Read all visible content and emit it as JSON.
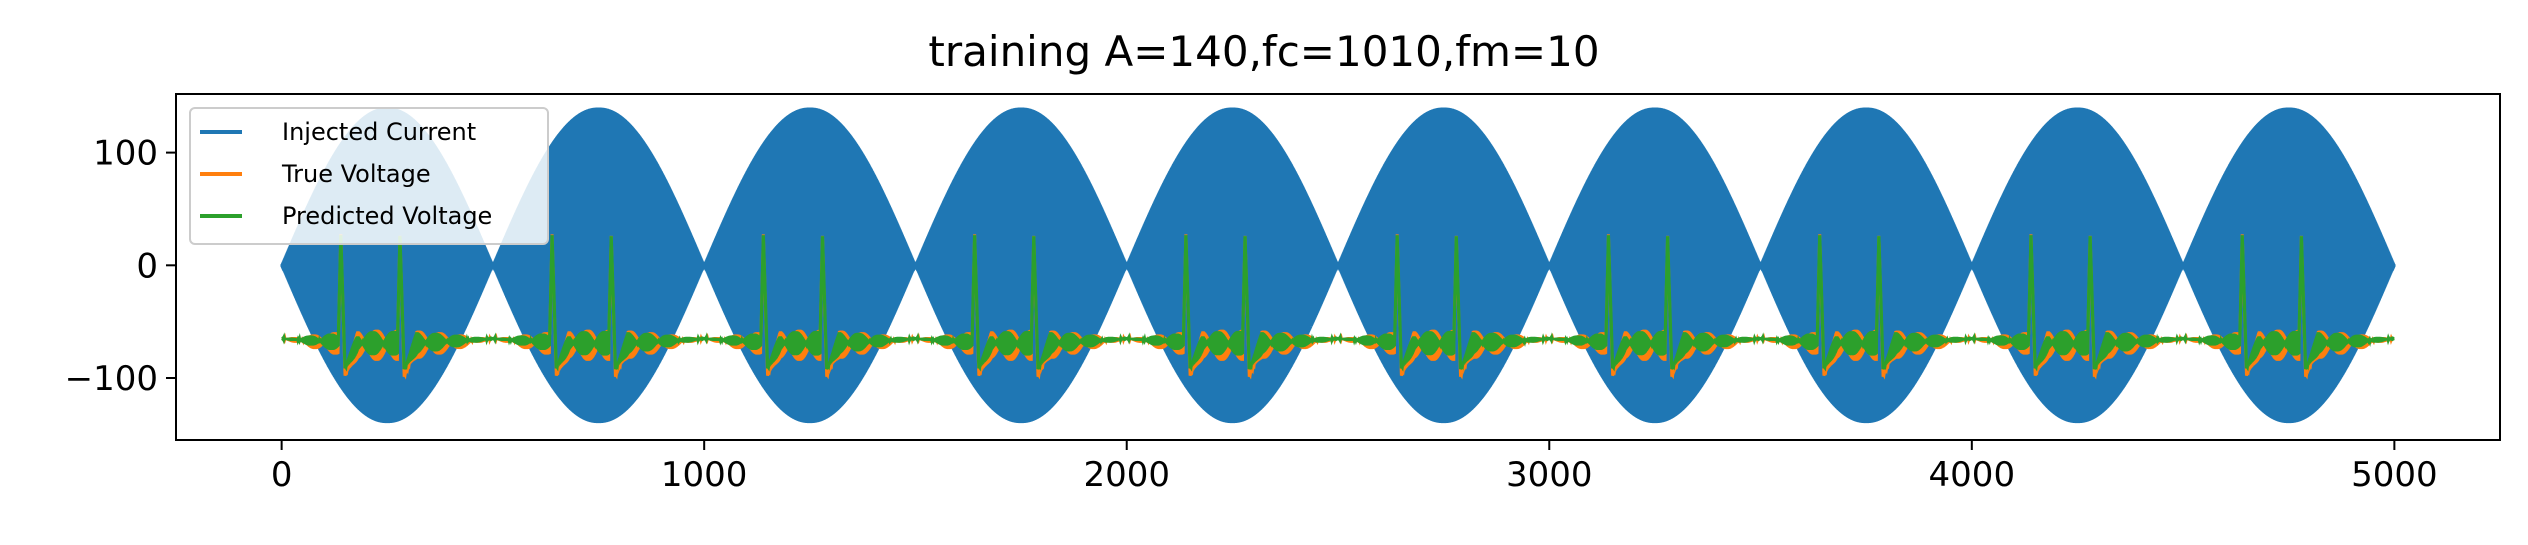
{
  "chart_data": {
    "type": "line",
    "title": "training A=140,fc=1010,fm=10",
    "xlabel": "",
    "ylabel": "",
    "xlim": [
      -250,
      5250
    ],
    "ylim": [
      -155,
      152
    ],
    "xticks": [
      0,
      1000,
      2000,
      3000,
      4000,
      5000
    ],
    "xtick_labels": [
      "0",
      "1000",
      "2000",
      "3000",
      "4000",
      "5000"
    ],
    "yticks": [
      -100,
      0,
      100
    ],
    "ytick_labels": [
      "−100",
      "0",
      "100"
    ],
    "grid": false,
    "legend_position": "upper-left",
    "series": [
      {
        "name": "Injected Current",
        "color": "#1f77b4",
        "description_kind": "amplitude-modulated carrier",
        "amplitude": 140,
        "carrier_frequency": 1010,
        "modulation_frequency": 10,
        "x_range": [
          0,
          5000
        ],
        "envelope_period": 500,
        "envelope_peaks_x": [
          250,
          750,
          1250,
          1750,
          2250,
          2750,
          3250,
          3750,
          4250,
          4750
        ],
        "envelope_peak_value": 140,
        "envelope_zeros_x": [
          0,
          500,
          1000,
          1500,
          2000,
          2500,
          3000,
          3500,
          4000,
          4500,
          5000
        ]
      },
      {
        "name": "True Voltage",
        "color": "#ff7f0e",
        "resting_value": -65,
        "spike_peak": 32,
        "spike_trough": -93,
        "spike_times": [
          140,
          280,
          640,
          780,
          1140,
          1280,
          1640,
          1780,
          2140,
          2280,
          2640,
          2780,
          3140,
          3280,
          3640,
          3780,
          4140,
          4280,
          4640,
          4780
        ]
      },
      {
        "name": "Predicted Voltage",
        "color": "#2ca02c",
        "resting_value": -65,
        "spike_peak": 30,
        "spike_trough": -88,
        "spike_times": [
          140,
          280,
          640,
          780,
          1140,
          1280,
          1640,
          1780,
          2140,
          2280,
          2640,
          2780,
          3140,
          3280,
          3640,
          3780,
          4140,
          4280,
          4640,
          4780
        ]
      }
    ]
  }
}
